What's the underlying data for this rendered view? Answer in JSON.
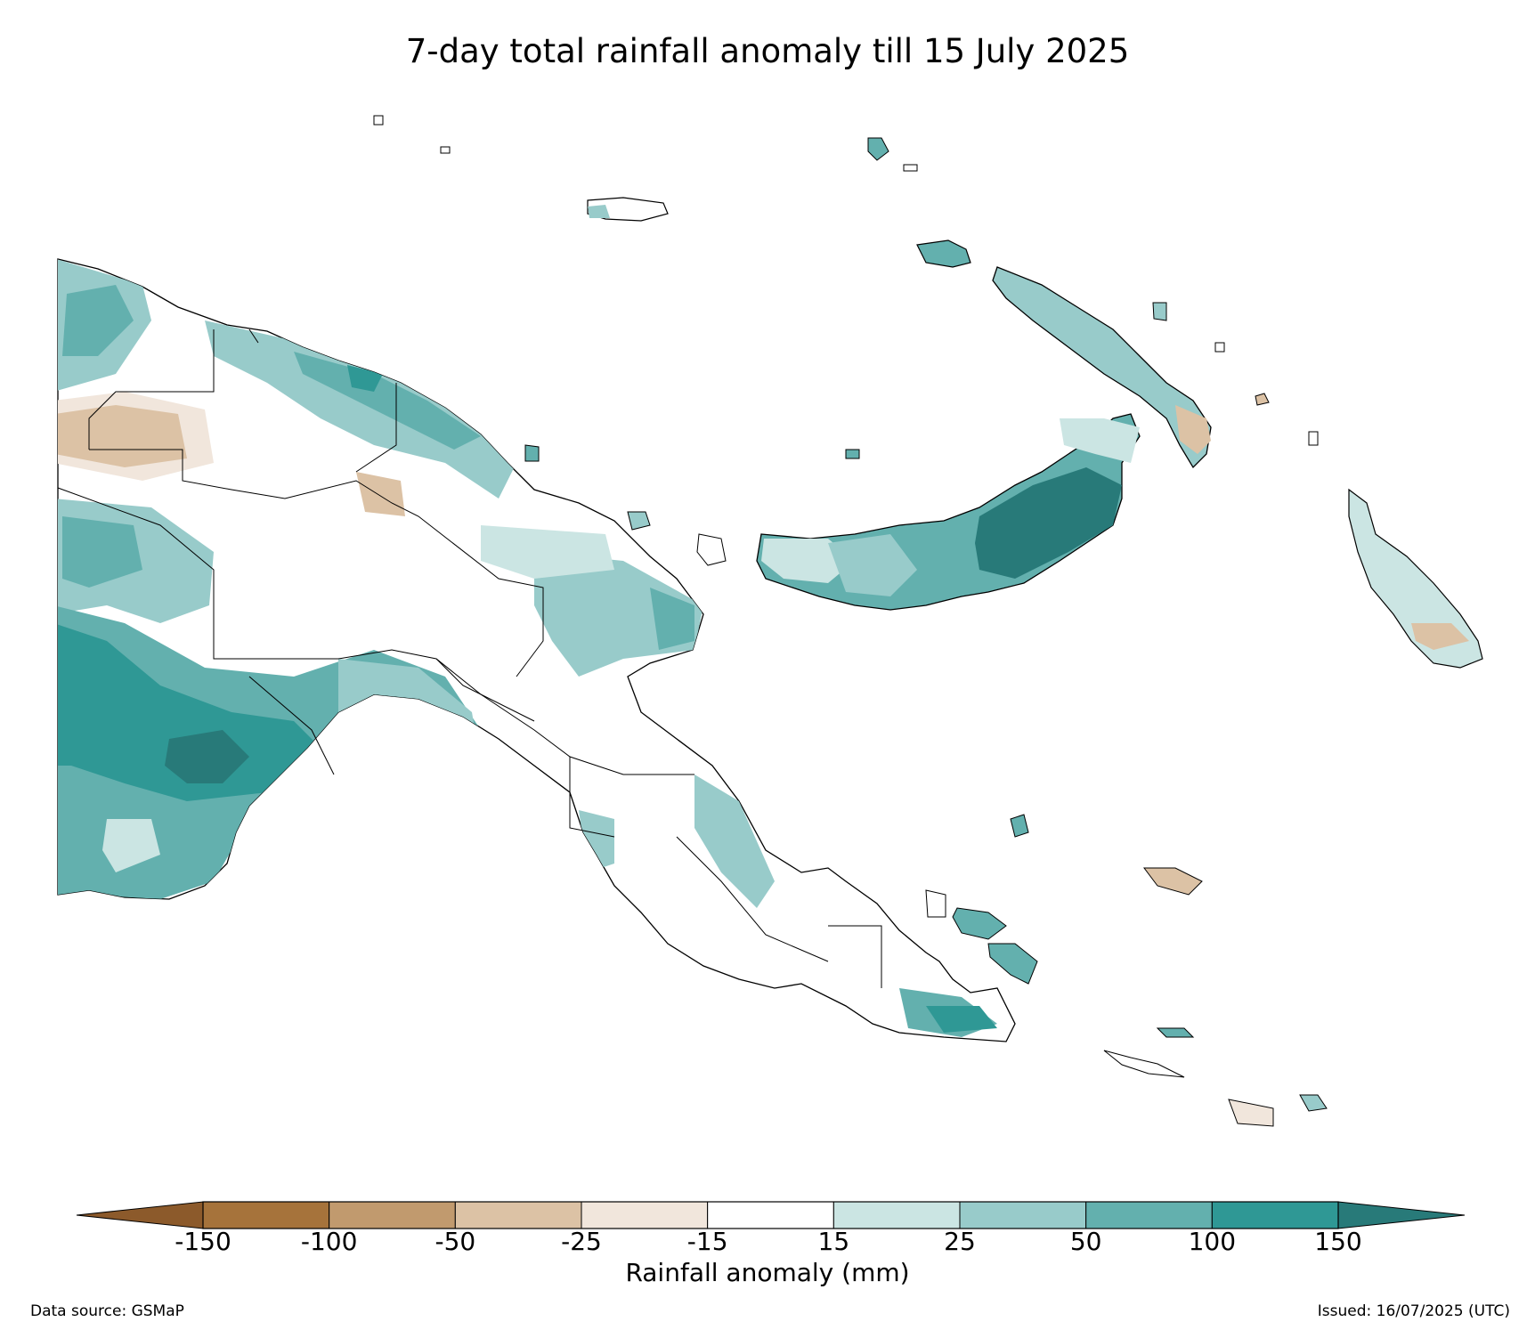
{
  "title": "7-day total rainfall anomaly till 15 July 2025",
  "colorbar": {
    "label": "Rainfall anomaly (mm)",
    "ticks": [
      "-150",
      "-100",
      "-50",
      "-25",
      "-15",
      "15",
      "25",
      "50",
      "100",
      "150"
    ],
    "colors": {
      "extend_low": "#8c5a2b",
      "neg150_100": "#a6733b",
      "neg100_50": "#c19a6e",
      "neg50_25": "#dcc2a5",
      "neg25_15": "#f1e6dc",
      "neutral": "#ffffff",
      "pos15_25": "#cbe5e3",
      "pos25_50": "#98cbca",
      "pos50_100": "#63b0ae",
      "pos100_150": "#2f9895",
      "extend_high": "#287a79"
    }
  },
  "footer": {
    "data_source": "Data source: GSMaP",
    "issued": "Issued: 16/07/2025 (UTC)"
  }
}
